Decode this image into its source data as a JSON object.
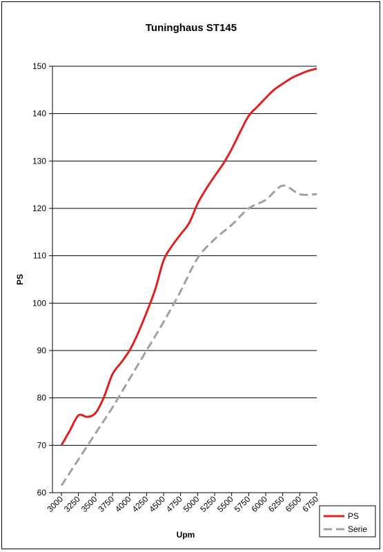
{
  "chart_data": {
    "type": "line",
    "title": "Tuninghaus ST145",
    "xlabel": "Upm",
    "ylabel": "PS",
    "xlim": [
      3000,
      6750
    ],
    "ylim": [
      60,
      150
    ],
    "x_ticks": [
      "3000",
      "3250",
      "3500",
      "3750",
      "4000",
      "4250",
      "4500",
      "4750",
      "5000",
      "5250",
      "5500",
      "5750",
      "6000",
      "6250",
      "6500",
      "6750"
    ],
    "y_ticks": [
      "60",
      "70",
      "80",
      "90",
      "100",
      "110",
      "120",
      "130",
      "140",
      "150"
    ],
    "grid": true,
    "legend_position": "bottom-right",
    "series": [
      {
        "name": "PS",
        "color": "#e02020",
        "dash": "solid",
        "x": [
          3000,
          3120,
          3250,
          3380,
          3500,
          3620,
          3750,
          3880,
          4000,
          4120,
          4250,
          4380,
          4500,
          4620,
          4750,
          4880,
          5000,
          5120,
          5250,
          5380,
          5500,
          5620,
          5750,
          5880,
          6000,
          6120,
          6250,
          6380,
          6500,
          6620,
          6750
        ],
        "values": [
          70,
          73,
          76.3,
          76,
          76.8,
          80,
          85,
          87.5,
          90,
          93.5,
          98,
          103,
          109,
          112,
          114.5,
          117,
          121,
          124,
          126.8,
          129.5,
          132.5,
          136,
          139.5,
          141.5,
          143.3,
          145,
          146.3,
          147.5,
          148.3,
          149,
          149.5
        ]
      },
      {
        "name": "Serie",
        "color": "#a0a0a0",
        "dash": "dashed",
        "x": [
          3000,
          3250,
          3500,
          3750,
          4000,
          4250,
          4500,
          4750,
          5000,
          5250,
          5500,
          5750,
          6000,
          6250,
          6500,
          6750
        ],
        "values": [
          61.5,
          67,
          72.5,
          78,
          84,
          90,
          96,
          102.5,
          109.5,
          113.5,
          116.5,
          120,
          121.8,
          124.8,
          123,
          123
        ]
      }
    ]
  }
}
